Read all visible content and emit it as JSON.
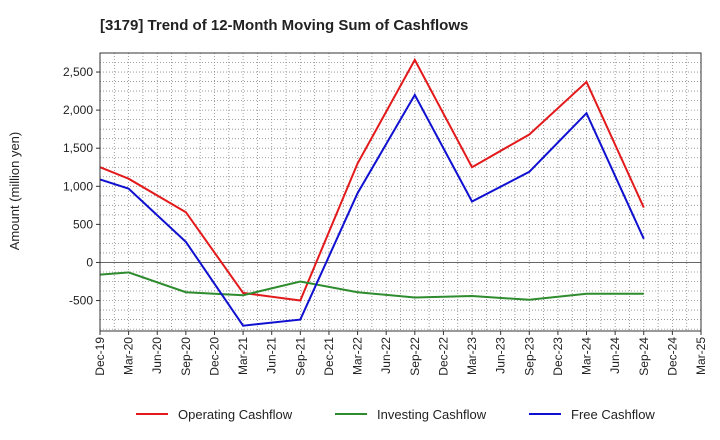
{
  "chart_data": {
    "type": "line",
    "title": "[3179]  Trend of 12-Month Moving Sum of Cashflows",
    "xlabel": "",
    "ylabel": "Amount (million yen)",
    "ylim": [
      -900,
      2750
    ],
    "yticks": [
      -500,
      0,
      500,
      1000,
      1500,
      2000,
      2500
    ],
    "ytick_labels": [
      "-500",
      "0",
      "500",
      "1,000",
      "1,500",
      "2,000",
      "2,500"
    ],
    "categories": [
      "Dec-19",
      "Mar-20",
      "Jun-20",
      "Sep-20",
      "Dec-20",
      "Mar-21",
      "Jun-21",
      "Sep-21",
      "Dec-21",
      "Mar-22",
      "Jun-22",
      "Sep-22",
      "Dec-22",
      "Mar-23",
      "Jun-23",
      "Sep-23",
      "Dec-23",
      "Mar-24",
      "Jun-24",
      "Sep-24",
      "Dec-24",
      "Mar-25"
    ],
    "grid": true,
    "legend_position": "bottom",
    "series": [
      {
        "name": "Operating Cashflow",
        "color": "#e31a1c",
        "points": [
          [
            "Dec-19",
            1250
          ],
          [
            "Mar-20",
            1100
          ],
          [
            "Sep-20",
            660
          ],
          [
            "Mar-21",
            -400
          ],
          [
            "Sep-21",
            -500
          ],
          [
            "Mar-22",
            1300
          ],
          [
            "Sep-22",
            2660
          ],
          [
            "Mar-23",
            1250
          ],
          [
            "Sep-23",
            1680
          ],
          [
            "Mar-24",
            2370
          ],
          [
            "Sep-24",
            720
          ]
        ]
      },
      {
        "name": "Investing Cashflow",
        "color": "#2e8b2e",
        "points": [
          [
            "Dec-19",
            -160
          ],
          [
            "Mar-20",
            -130
          ],
          [
            "Sep-20",
            -390
          ],
          [
            "Mar-21",
            -430
          ],
          [
            "Sep-21",
            -250
          ],
          [
            "Mar-22",
            -390
          ],
          [
            "Sep-22",
            -460
          ],
          [
            "Mar-23",
            -440
          ],
          [
            "Sep-23",
            -490
          ],
          [
            "Mar-24",
            -410
          ],
          [
            "Sep-24",
            -410
          ]
        ]
      },
      {
        "name": "Free Cashflow",
        "color": "#1010d0",
        "points": [
          [
            "Dec-19",
            1090
          ],
          [
            "Mar-20",
            970
          ],
          [
            "Sep-20",
            270
          ],
          [
            "Mar-21",
            -830
          ],
          [
            "Sep-21",
            -750
          ],
          [
            "Mar-22",
            910
          ],
          [
            "Sep-22",
            2200
          ],
          [
            "Mar-23",
            800
          ],
          [
            "Sep-23",
            1190
          ],
          [
            "Mar-24",
            1960
          ],
          [
            "Sep-24",
            310
          ]
        ]
      }
    ]
  }
}
